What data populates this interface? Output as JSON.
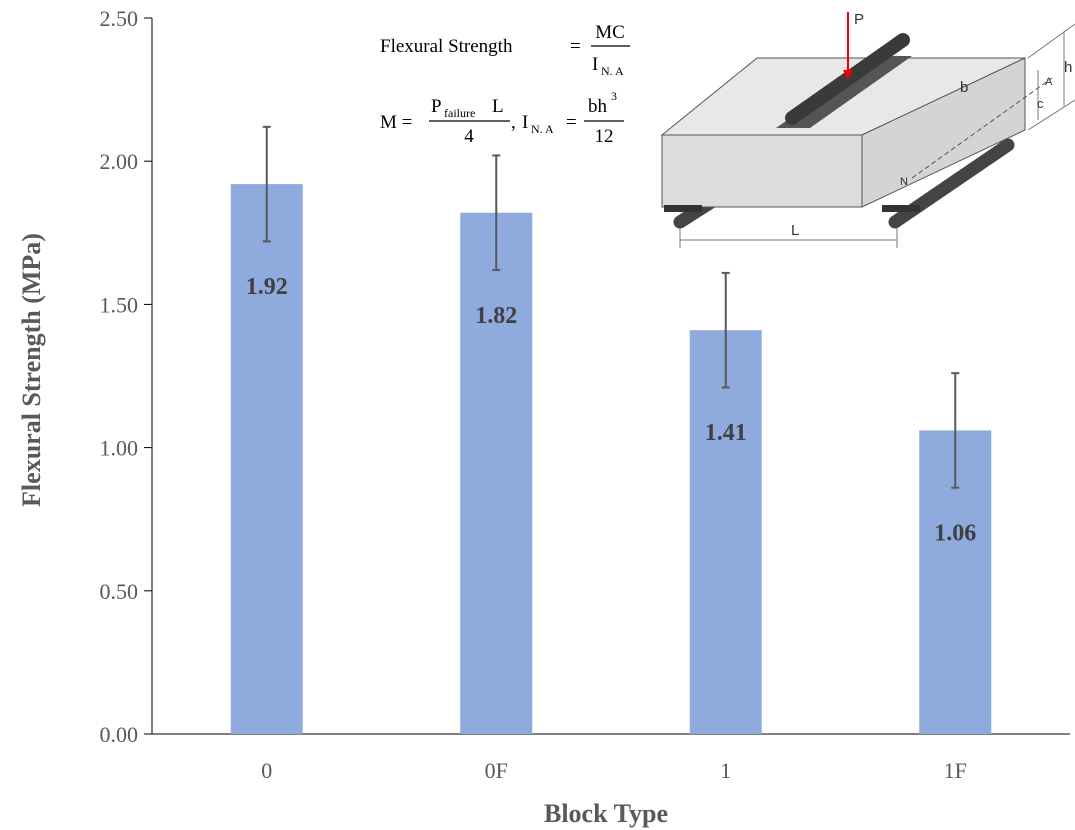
{
  "chart_data": {
    "type": "bar",
    "x_label": "Block Type",
    "y_label": "Flexural Strength (MPa)",
    "categories": [
      "0",
      "0F",
      "1",
      "1F"
    ],
    "values": [
      1.92,
      1.82,
      1.41,
      1.06
    ],
    "errors": [
      0.2,
      0.2,
      0.2,
      0.2
    ],
    "color": "#8faadc",
    "error_color": "#595959",
    "ylim": [
      0,
      2.5
    ],
    "yticks": [
      {
        "value": 0,
        "label": "0.00"
      },
      {
        "value": 0.5,
        "label": "0.50"
      },
      {
        "value": 1,
        "label": "1.00"
      },
      {
        "value": 1.5,
        "label": "1.50"
      },
      {
        "value": 2,
        "label": "2.00"
      },
      {
        "value": 2.5,
        "label": "2.50"
      }
    ],
    "grid": false,
    "formula": [
      "Flexural Strength",
      "=",
      "MC",
      "I",
      "N. A",
      "M =",
      "P",
      "failure",
      "L",
      "4",
      ",",
      "I",
      "N. A",
      "=",
      "bh",
      "3",
      "12"
    ],
    "diagram_labels": [
      "P",
      "b",
      "h",
      "A",
      "c",
      "N",
      "L"
    ]
  }
}
